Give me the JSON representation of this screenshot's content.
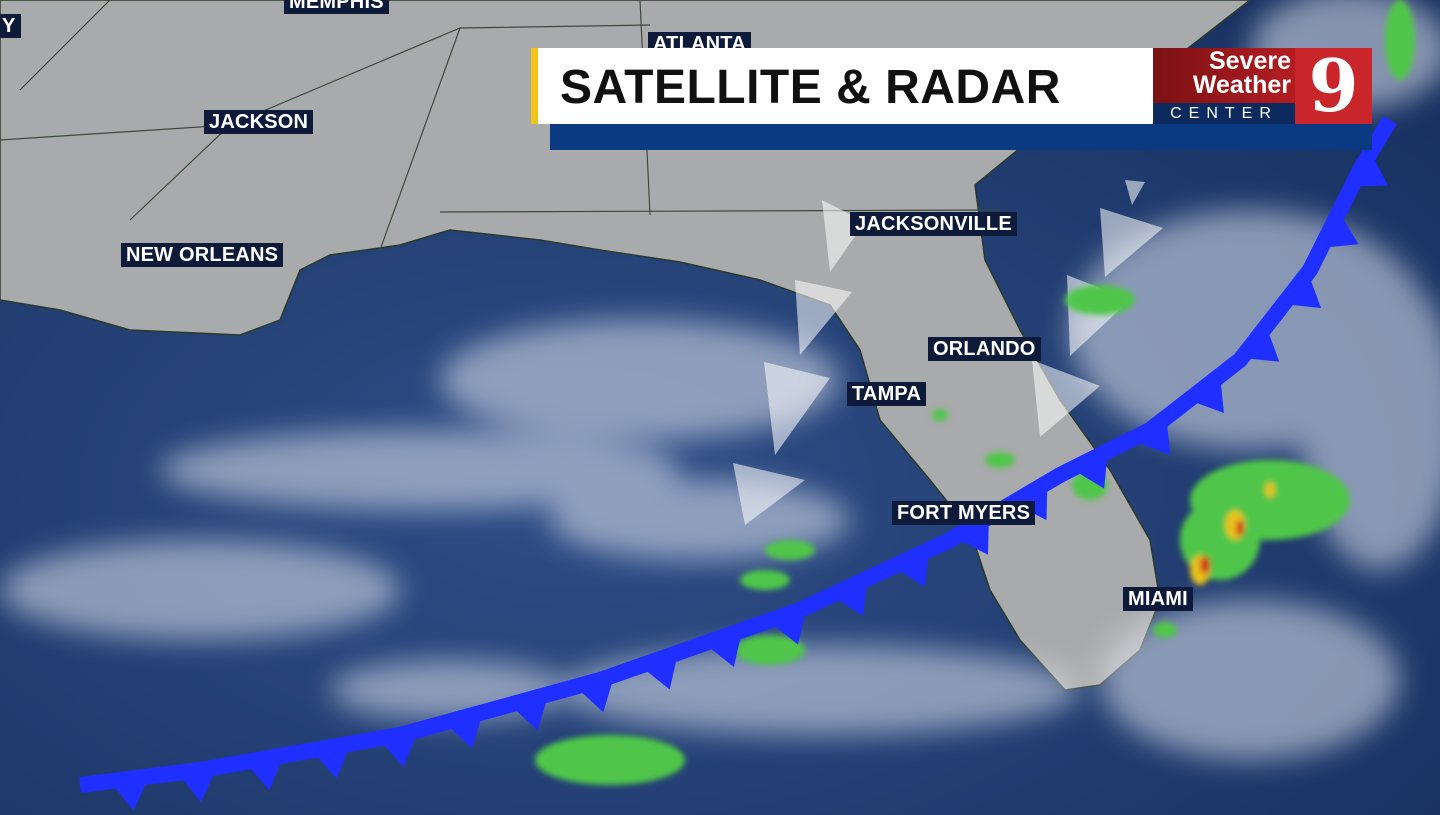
{
  "banner": {
    "title": "SATELLITE & RADAR",
    "accent_color": "#f2c318",
    "bar_color": "#0b3a82"
  },
  "logo": {
    "line1": "Severe",
    "line2": "Weather",
    "line3": "CENTER",
    "number": "9"
  },
  "cities": [
    {
      "id": "memphis",
      "name": "MEMPHIS"
    },
    {
      "id": "atlanta",
      "name": "ATLANTA"
    },
    {
      "id": "jackson",
      "name": "JACKSON"
    },
    {
      "id": "new-orleans",
      "name": "NEW ORLEANS"
    },
    {
      "id": "jacksonville",
      "name": "JACKSONVILLE"
    },
    {
      "id": "orlando",
      "name": "ORLANDO"
    },
    {
      "id": "tampa",
      "name": "TAMPA"
    },
    {
      "id": "fort-myers",
      "name": "FORT MYERS"
    },
    {
      "id": "miami",
      "name": "MIAMI"
    },
    {
      "id": "partial-left",
      "name": "Y"
    }
  ],
  "features": {
    "cold_front_color": "#1f2fff",
    "radar_light": "#4fc64a",
    "radar_heavy": "#e6c21d",
    "radar_extreme": "#d32a1f"
  }
}
